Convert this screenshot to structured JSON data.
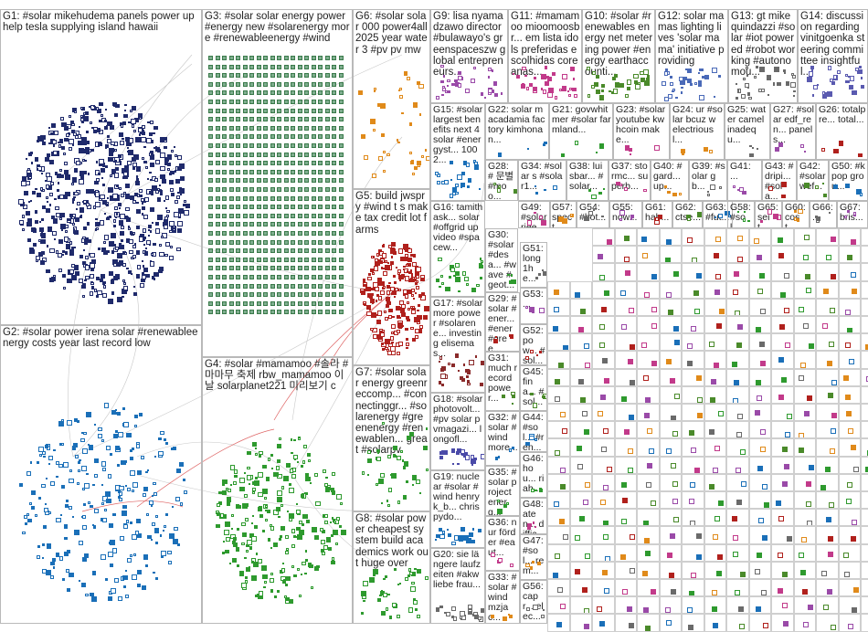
{
  "groups": [
    {
      "id": "G1",
      "label": "G1: #solar mikehudema panels power up help tesla supplying island hawaii",
      "color": "#1f2a6b"
    },
    {
      "id": "G2",
      "label": "G2: #solar power irena solar #renewableenergy costs year last record low",
      "color": "#1a6fb8"
    },
    {
      "id": "G3",
      "label": "G3: #solar solar energy power #energy new #solarenergy more #renewableenergy #wind",
      "color": "#3a7a4a"
    },
    {
      "id": "G4",
      "label": "G4: #solar #mamamoo #솔라 # 마마무 축제 rbw_mamamoo 이날 solarplanet221 미리보기 c",
      "color": "#2e9a2e"
    },
    {
      "id": "G5",
      "label": "G5: build jwspry #wind t s make tax credit lot farms",
      "color": "#b0201c"
    },
    {
      "id": "G6",
      "label": "G6: #solar solar 000 power4all2025 year water 3 #pv pv mw",
      "color": "#e08a1a"
    },
    {
      "id": "G7",
      "label": "G7: #solar solar energy greenreccomp... #connectinggr... #solarenergy #greenenergy #renewablen... great #solarpv",
      "color": "#2e9a2e"
    },
    {
      "id": "G8",
      "label": "G8: #solar power cheapest system build academics work out huge over",
      "color": "#2e9a2e"
    },
    {
      "id": "G9",
      "label": "G9: lisa nyamadzawo director #bulawayo's greenspaceszw global entrepreneurs...",
      "color": "#9a4aa8"
    },
    {
      "id": "G10",
      "label": "G10: #solar #renewables energy net metering power #energy earthaccounti...",
      "color": "#4a8a2a"
    },
    {
      "id": "G11",
      "label": "G11: #mamamoo mioomoosbr... em lista idols preferidas escolhidas coreanas...",
      "color": "#c23a8a"
    },
    {
      "id": "G12",
      "label": "G12: solar mamas lighting lives 'solar mama' initiative providing",
      "color": "#4a6ab8"
    },
    {
      "id": "G13",
      "label": "G13: gt mikequindazzi #solar #iot powered #robot working #autonomou...",
      "color": "#6a6a6a"
    },
    {
      "id": "G14",
      "label": "G14: discussion regarding vinitgoenka steering committee insightful...",
      "color": "#5a5ab0"
    },
    {
      "id": "G15",
      "label": "G15: #solar largest benefits next 4 solar #energyst... 100 2...",
      "color": "#1a6fb8"
    },
    {
      "id": "G16",
      "label": "G16: tamithask... solar #offgrid up video #spacew...",
      "color": "#2e9a2e"
    },
    {
      "id": "G17",
      "label": "G17: #solar more power #solarene... investing elisemas...",
      "color": "#8a2a2a"
    },
    {
      "id": "G18",
      "label": "G18: #solar photovolt... #pv solar pvmagazi... longofl...",
      "color": "#4a4aa8"
    },
    {
      "id": "G19",
      "label": "G19: nuclear #solar #wind henryk_b... chrispydo...",
      "color": "#1a6fb8"
    },
    {
      "id": "G20",
      "label": "G20: sie längere laufzeiten #akw liebe frau...",
      "color": "#6a6a6a"
    }
  ],
  "small_groups": [
    {
      "label": "G22: solar macadamia factory kimhonan..."
    },
    {
      "label": "G21: govwhitmer #solar farmland..."
    },
    {
      "label": "G23: #solar youtube kwhcoin make..."
    },
    {
      "label": "G24: ur #solar bcuz w electriousl..."
    },
    {
      "label": "G25: water camel inadequ..."
    },
    {
      "label": "G27: #solar edf_ren... panels..."
    },
    {
      "label": "G26: totalpre... total..."
    },
    {
      "label": "G28: # 문별 #moo..."
    },
    {
      "label": "G34: #solar s #solar1..."
    },
    {
      "label": "G38: luisbar... #solar..."
    },
    {
      "label": "G37: stormc... superb..."
    },
    {
      "label": "G40: #gard... up..."
    },
    {
      "label": "G39: #solar gb..."
    },
    {
      "label": "G41: ..."
    },
    {
      "label": "G43: #dripi... #sola..."
    },
    {
      "label": "G42: #solar wef..."
    },
    {
      "label": "G50: #kpop grou..."
    },
    {
      "label": "G30: #solar #desa... #wave #geot..."
    },
    {
      "label": "G49: #solar riee..."
    },
    {
      "label": "G57: spect..."
    },
    {
      "label": "G54: #bot..."
    },
    {
      "label": "G55: now..."
    },
    {
      "label": "G61: hab..."
    },
    {
      "label": "G62: ctse..."
    },
    {
      "label": "G63: #fut..."
    },
    {
      "label": "G58: #sol..."
    },
    {
      "label": "G65: seit..."
    },
    {
      "label": "G60: cost..."
    },
    {
      "label": "G66: ..."
    },
    {
      "label": "G67: bris..."
    },
    {
      "label": "G29: #solar #ener... #ener #gree..."
    },
    {
      "label": "G31: much record power..."
    },
    {
      "label": "G32: #solar #wind more..."
    },
    {
      "label": "G35: #solar project energ..."
    },
    {
      "label": "G36: nur förder #eaut..."
    },
    {
      "label": "G33: #solar #wind mzjac..."
    },
    {
      "label": "G51: long 1he..."
    },
    {
      "label": "G53: ..."
    },
    {
      "label": "G52: pow... #sol..."
    },
    {
      "label": "G45: fina... #sol..."
    },
    {
      "label": "G44: #sol... #ren..."
    },
    {
      "label": "G46: hou... riah..."
    },
    {
      "label": "G48: aten... diffic..."
    },
    {
      "label": "G47: #sol... rem..."
    },
    {
      "label": "G56: capr... elec..."
    }
  ]
}
